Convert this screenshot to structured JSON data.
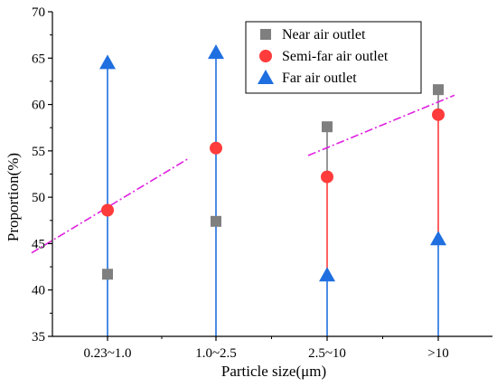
{
  "chart_data": {
    "type": "scatter",
    "title": "",
    "xlabel": "Particle size(μm)",
    "ylabel": "Proportion(%)",
    "categories": [
      "0.23~1.0",
      "1.0~2.5",
      "2.5~10",
      ">10"
    ],
    "ylim": [
      35,
      70
    ],
    "yticks": [
      35,
      40,
      45,
      50,
      55,
      60,
      65,
      70
    ],
    "grid": false,
    "legend_position": "top-right",
    "series": [
      {
        "name": "Near air outlet",
        "marker": "square",
        "color": "#7f7f7f",
        "values": [
          41.7,
          47.4,
          57.6,
          61.6
        ]
      },
      {
        "name": "Semi-far air outlet",
        "marker": "circle",
        "color": "#ff3b3b",
        "values": [
          48.6,
          55.3,
          52.2,
          58.9
        ]
      },
      {
        "name": "Far air outlet",
        "marker": "triangle",
        "color": "#1f6fe0",
        "values": [
          64.5,
          65.6,
          41.6,
          45.5
        ]
      }
    ],
    "range_lines": [
      {
        "category": "0.23~1.0",
        "from": 35,
        "to": 64.5,
        "color": "#1f6fe0"
      },
      {
        "category": "1.0~2.5",
        "from": 35,
        "to": 65.6,
        "color": "#1f6fe0"
      },
      {
        "category": "2.5~10",
        "from": 35,
        "to": 41.6,
        "color": "#1f6fe0"
      },
      {
        "category": "2.5~10",
        "from": 41.6,
        "to": 52.2,
        "color": "#ff3b3b"
      },
      {
        "category": "2.5~10",
        "from": 52.2,
        "to": 57.6,
        "color": "#7f7f7f"
      },
      {
        "category": ">10",
        "from": 35,
        "to": 45.5,
        "color": "#1f6fe0"
      },
      {
        "category": ">10",
        "from": 45.5,
        "to": 58.9,
        "color": "#ff3b3b"
      },
      {
        "category": ">10",
        "from": 58.9,
        "to": 61.6,
        "color": "#7f7f7f"
      }
    ],
    "trend_lines": [
      {
        "x_from": 0.3,
        "y_from": 44.0,
        "x_to": 1.75,
        "y_to": 54.2,
        "color": "#e020e0",
        "style": "dash-dot"
      },
      {
        "x_from": 2.85,
        "y_from": 54.5,
        "x_to": 4.2,
        "y_to": 61.0,
        "color": "#e020e0",
        "style": "dash-dot"
      }
    ]
  }
}
